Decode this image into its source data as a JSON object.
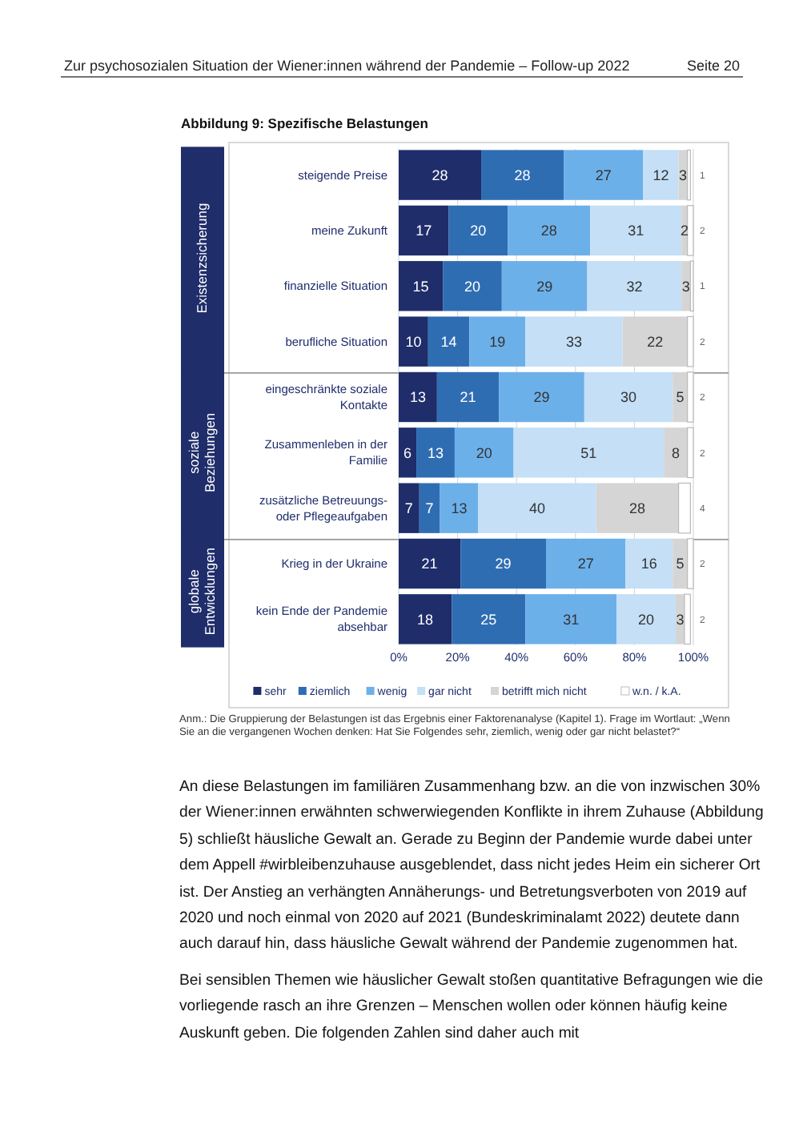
{
  "chart_data": {
    "type": "bar",
    "orientation": "horizontal",
    "stacked": true,
    "title": "Abbildung 9: Spezifische Belastungen",
    "categories": [
      "steigende Preise",
      "meine Zukunft",
      "finanzielle Situation",
      "berufliche Situation",
      "eingeschränkte soziale Kontakte",
      "Zusammenleben in der Familie",
      "zusätzliche Betreuungs- oder Pflegeaufgaben",
      "Krieg in der Ukraine",
      "kein Ende der Pandemie absehbar"
    ],
    "series": [
      {
        "name": "sehr",
        "color": "#1f2d6b",
        "values": [
          28,
          17,
          15,
          10,
          13,
          6,
          7,
          21,
          18
        ]
      },
      {
        "name": "ziemlich",
        "color": "#2f6db3",
        "values": [
          28,
          20,
          20,
          14,
          21,
          13,
          7,
          29,
          25
        ]
      },
      {
        "name": "wenig",
        "color": "#6cb0ea",
        "values": [
          27,
          28,
          29,
          19,
          29,
          20,
          13,
          27,
          31
        ]
      },
      {
        "name": "gar nicht",
        "color": "#c4dff6",
        "values": [
          12,
          31,
          32,
          33,
          30,
          51,
          40,
          16,
          20
        ]
      },
      {
        "name": "betrifft mich nicht",
        "color": "#d5d5d5",
        "values": [
          3,
          2,
          3,
          22,
          5,
          8,
          28,
          5,
          3
        ]
      },
      {
        "name": "w.n. / k.A.",
        "color": "#ffffff",
        "values": [
          1,
          2,
          1,
          2,
          2,
          2,
          4,
          2,
          2
        ]
      }
    ],
    "xlim": [
      0,
      100
    ],
    "xticks": [
      {
        "value": 0,
        "label": "0%"
      },
      {
        "value": 20,
        "label": "20%"
      },
      {
        "value": 40,
        "label": "40%"
      },
      {
        "value": 60,
        "label": "60%"
      },
      {
        "value": 80,
        "label": "80%"
      },
      {
        "value": 100,
        "label": "100%"
      }
    ],
    "grid": "x",
    "legend": "bottom",
    "data_labels": true,
    "annotations": [
      "Zur psychosozialen Situation der Wiener:innen während der Pandemie – Follow-up 2022",
      "Seite 20",
      "Existenzsicherung",
      "soziale Beziehungen",
      "globale Entwicklungen",
      "Anm.: Die Gruppierung der Belastungen ist das Ergebnis einer Faktorenanalyse (Kapitel 1). Frage im Wortlaut: „Wenn Sie an die vergangenen Wochen denken: Hat Sie Folgendes sehr, ziemlich, wenig oder gar nicht belastet?“",
      "An diese Belastungen im familiären Zusammenhang bzw. an die von inzwischen 30% der Wiener:innen erwähnten schwerwiegenden Konflikte in ihrem Zuhause (Abbildung 5) schließt häusliche Gewalt an. Gerade zu Beginn der Pandemie wurde dabei unter dem Appell #wirbleibenzuhause ausgeblendet, dass nicht jedes Heim ein sicherer Ort ist. Der Anstieg an verhängten Annäherungs- und Betretungsverboten von 2019 auf 2020 und noch einmal von 2020 auf 2021 (Bundeskriminalamt 2022) deutete dann auch darauf hin, dass häusliche Gewalt während der Pandemie zugenommen hat.",
      "Bei sensiblen Themen wie häuslicher Gewalt stoßen quantitative Befragungen wie die vorliegende rasch an ihre Grenzen – Menschen wollen oder können häufig keine Auskunft geben. Die folgenden Zahlen sind daher auch mit"
    ]
  }
}
